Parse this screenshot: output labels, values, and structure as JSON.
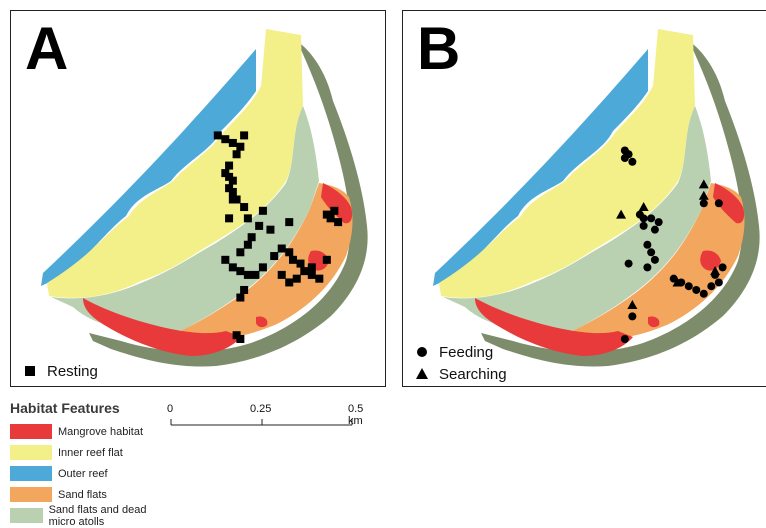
{
  "panels": [
    {
      "letter": "A",
      "legend": [
        {
          "symbol": "square",
          "label": "Resting"
        }
      ],
      "points": [
        {
          "s": "square",
          "x": 0.55,
          "y": 0.33
        },
        {
          "s": "square",
          "x": 0.57,
          "y": 0.34
        },
        {
          "s": "square",
          "x": 0.59,
          "y": 0.35
        },
        {
          "s": "square",
          "x": 0.61,
          "y": 0.36
        },
        {
          "s": "square",
          "x": 0.6,
          "y": 0.38
        },
        {
          "s": "square",
          "x": 0.62,
          "y": 0.33
        },
        {
          "s": "square",
          "x": 0.58,
          "y": 0.41
        },
        {
          "s": "square",
          "x": 0.57,
          "y": 0.43
        },
        {
          "s": "square",
          "x": 0.58,
          "y": 0.44
        },
        {
          "s": "square",
          "x": 0.59,
          "y": 0.45
        },
        {
          "s": "square",
          "x": 0.58,
          "y": 0.47
        },
        {
          "s": "square",
          "x": 0.59,
          "y": 0.48
        },
        {
          "s": "square",
          "x": 0.6,
          "y": 0.5
        },
        {
          "s": "square",
          "x": 0.62,
          "y": 0.52
        },
        {
          "s": "square",
          "x": 0.63,
          "y": 0.55
        },
        {
          "s": "square",
          "x": 0.58,
          "y": 0.55
        },
        {
          "s": "square",
          "x": 0.67,
          "y": 0.53
        },
        {
          "s": "square",
          "x": 0.69,
          "y": 0.58
        },
        {
          "s": "square",
          "x": 0.66,
          "y": 0.57
        },
        {
          "s": "square",
          "x": 0.64,
          "y": 0.6
        },
        {
          "s": "square",
          "x": 0.63,
          "y": 0.62
        },
        {
          "s": "square",
          "x": 0.61,
          "y": 0.64
        },
        {
          "s": "square",
          "x": 0.57,
          "y": 0.66
        },
        {
          "s": "square",
          "x": 0.59,
          "y": 0.68
        },
        {
          "s": "square",
          "x": 0.61,
          "y": 0.69
        },
        {
          "s": "square",
          "x": 0.63,
          "y": 0.7
        },
        {
          "s": "square",
          "x": 0.62,
          "y": 0.74
        },
        {
          "s": "square",
          "x": 0.61,
          "y": 0.76
        },
        {
          "s": "square",
          "x": 0.65,
          "y": 0.7
        },
        {
          "s": "square",
          "x": 0.67,
          "y": 0.68
        },
        {
          "s": "square",
          "x": 0.7,
          "y": 0.65
        },
        {
          "s": "square",
          "x": 0.72,
          "y": 0.63
        },
        {
          "s": "square",
          "x": 0.74,
          "y": 0.64
        },
        {
          "s": "square",
          "x": 0.75,
          "y": 0.66
        },
        {
          "s": "square",
          "x": 0.77,
          "y": 0.67
        },
        {
          "s": "square",
          "x": 0.78,
          "y": 0.69
        },
        {
          "s": "square",
          "x": 0.76,
          "y": 0.71
        },
        {
          "s": "square",
          "x": 0.74,
          "y": 0.72
        },
        {
          "s": "square",
          "x": 0.72,
          "y": 0.7
        },
        {
          "s": "square",
          "x": 0.8,
          "y": 0.7
        },
        {
          "s": "square",
          "x": 0.82,
          "y": 0.71
        },
        {
          "s": "square",
          "x": 0.84,
          "y": 0.66
        },
        {
          "s": "square",
          "x": 0.85,
          "y": 0.55
        },
        {
          "s": "square",
          "x": 0.86,
          "y": 0.53
        },
        {
          "s": "square",
          "x": 0.84,
          "y": 0.54
        },
        {
          "s": "square",
          "x": 0.87,
          "y": 0.56
        },
        {
          "s": "square",
          "x": 0.59,
          "y": 0.5
        },
        {
          "s": "square",
          "x": 0.61,
          "y": 0.87
        },
        {
          "s": "square",
          "x": 0.6,
          "y": 0.86
        },
        {
          "s": "square",
          "x": 0.74,
          "y": 0.56
        },
        {
          "s": "square",
          "x": 0.8,
          "y": 0.68
        }
      ]
    },
    {
      "letter": "B",
      "legend": [
        {
          "symbol": "circle",
          "label": "Feeding"
        },
        {
          "symbol": "triangle",
          "label": "Searching"
        }
      ],
      "points": [
        {
          "s": "circle",
          "x": 0.59,
          "y": 0.37
        },
        {
          "s": "circle",
          "x": 0.6,
          "y": 0.38
        },
        {
          "s": "circle",
          "x": 0.59,
          "y": 0.39
        },
        {
          "s": "circle",
          "x": 0.61,
          "y": 0.4
        },
        {
          "s": "circle",
          "x": 0.63,
          "y": 0.54
        },
        {
          "s": "circle",
          "x": 0.64,
          "y": 0.55
        },
        {
          "s": "circle",
          "x": 0.66,
          "y": 0.55
        },
        {
          "s": "circle",
          "x": 0.68,
          "y": 0.56
        },
        {
          "s": "circle",
          "x": 0.64,
          "y": 0.57
        },
        {
          "s": "circle",
          "x": 0.65,
          "y": 0.62
        },
        {
          "s": "circle",
          "x": 0.66,
          "y": 0.64
        },
        {
          "s": "circle",
          "x": 0.67,
          "y": 0.66
        },
        {
          "s": "circle",
          "x": 0.65,
          "y": 0.68
        },
        {
          "s": "circle",
          "x": 0.6,
          "y": 0.67
        },
        {
          "s": "circle",
          "x": 0.72,
          "y": 0.71
        },
        {
          "s": "circle",
          "x": 0.74,
          "y": 0.72
        },
        {
          "s": "circle",
          "x": 0.76,
          "y": 0.73
        },
        {
          "s": "circle",
          "x": 0.78,
          "y": 0.74
        },
        {
          "s": "circle",
          "x": 0.8,
          "y": 0.75
        },
        {
          "s": "circle",
          "x": 0.82,
          "y": 0.73
        },
        {
          "s": "circle",
          "x": 0.84,
          "y": 0.72
        },
        {
          "s": "circle",
          "x": 0.83,
          "y": 0.7
        },
        {
          "s": "circle",
          "x": 0.8,
          "y": 0.51
        },
        {
          "s": "circle",
          "x": 0.84,
          "y": 0.51
        },
        {
          "s": "circle",
          "x": 0.85,
          "y": 0.68
        },
        {
          "s": "circle",
          "x": 0.61,
          "y": 0.81
        },
        {
          "s": "circle",
          "x": 0.59,
          "y": 0.87
        },
        {
          "s": "circle",
          "x": 0.67,
          "y": 0.58
        },
        {
          "s": "triangle",
          "x": 0.64,
          "y": 0.52
        },
        {
          "s": "triangle",
          "x": 0.58,
          "y": 0.54
        },
        {
          "s": "triangle",
          "x": 0.8,
          "y": 0.46
        },
        {
          "s": "triangle",
          "x": 0.8,
          "y": 0.49
        },
        {
          "s": "triangle",
          "x": 0.73,
          "y": 0.72
        },
        {
          "s": "triangle",
          "x": 0.61,
          "y": 0.78
        },
        {
          "s": "triangle",
          "x": 0.83,
          "y": 0.69
        }
      ]
    }
  ],
  "habitat_legend": {
    "title": "Habitat Features",
    "items": [
      {
        "label": "Mangrove habitat",
        "color": "#e83a3a"
      },
      {
        "label": "Inner reef flat",
        "color": "#f3f08a"
      },
      {
        "label": "Outer reef",
        "color": "#4da9d8"
      },
      {
        "label": "Sand flats",
        "color": "#f2a65e"
      },
      {
        "label": "Sand flats and dead micro atolls",
        "color": "#b9d1b1"
      }
    ]
  },
  "scalebar": {
    "labels": [
      "0",
      "0.25",
      "0.5 km"
    ]
  },
  "colors": {
    "mangrove": "#e83a3a",
    "inner_reef": "#f3f08a",
    "outer_reef": "#4da9d8",
    "sand_flats": "#f2a65e",
    "sand_dead": "#b9d1b1",
    "land": "#7d8c6a"
  }
}
